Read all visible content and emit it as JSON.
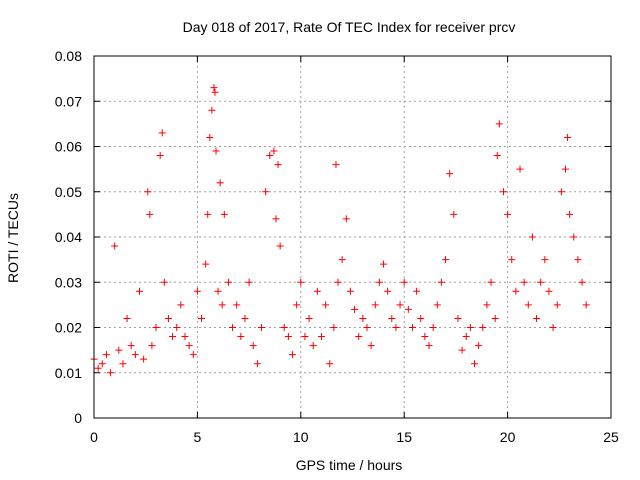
{
  "chart_data": {
    "type": "scatter",
    "title": "Day 018 of 2017, Rate Of TEC Index for receiver prcv",
    "xlabel": "GPS time / hours",
    "ylabel": "ROTI / TECUs",
    "xlim": [
      0,
      25
    ],
    "ylim": [
      0,
      0.08
    ],
    "x_ticks": [
      "0",
      "5",
      "10",
      "15",
      "20",
      "25"
    ],
    "y_ticks": [
      "0",
      "0.01",
      "0.02",
      "0.03",
      "0.04",
      "0.05",
      "0.06",
      "0.07",
      "0.08"
    ],
    "grid": true,
    "marker": "plus",
    "color": "#ff0000",
    "series": [
      {
        "x": [
          0.0,
          0.2,
          0.4,
          0.6,
          0.8,
          1.0,
          1.2,
          1.4,
          1.6,
          1.8,
          2.0,
          2.2,
          2.4,
          2.6,
          2.7,
          2.8,
          3.0,
          3.2,
          3.3,
          3.4,
          3.6,
          3.8,
          4.0,
          4.2,
          4.4,
          4.6,
          4.8,
          5.0,
          5.2,
          5.4,
          5.5,
          5.6,
          5.7,
          5.8,
          5.85,
          5.9,
          6.0,
          6.1,
          6.2,
          6.3,
          6.5,
          6.7,
          6.9,
          7.1,
          7.3,
          7.5,
          7.7,
          7.9,
          8.1,
          8.3,
          8.5,
          8.7,
          8.8,
          8.9,
          9.0,
          9.2,
          9.4,
          9.6,
          9.8,
          10.0,
          10.2,
          10.4,
          10.6,
          10.8,
          11.0,
          11.2,
          11.4,
          11.6,
          11.7,
          11.8,
          12.0,
          12.2,
          12.4,
          12.6,
          12.8,
          13.0,
          13.2,
          13.4,
          13.6,
          13.8,
          14.0,
          14.2,
          14.4,
          14.6,
          14.8,
          15.0,
          15.2,
          15.4,
          15.6,
          15.8,
          16.0,
          16.2,
          16.4,
          16.6,
          16.8,
          17.0,
          17.2,
          17.4,
          17.6,
          17.8,
          18.0,
          18.2,
          18.4,
          18.6,
          18.8,
          19.0,
          19.2,
          19.4,
          19.5,
          19.6,
          19.8,
          20.0,
          20.2,
          20.4,
          20.6,
          20.8,
          21.0,
          21.2,
          21.4,
          21.6,
          21.8,
          22.0,
          22.2,
          22.4,
          22.6,
          22.8,
          22.9,
          23.0,
          23.2,
          23.4,
          23.6,
          23.8
        ],
        "y": [
          0.013,
          0.011,
          0.012,
          0.014,
          0.01,
          0.038,
          0.015,
          0.012,
          0.022,
          0.016,
          0.014,
          0.028,
          0.013,
          0.05,
          0.045,
          0.016,
          0.02,
          0.058,
          0.063,
          0.03,
          0.022,
          0.018,
          0.02,
          0.025,
          0.018,
          0.016,
          0.014,
          0.028,
          0.022,
          0.034,
          0.045,
          0.062,
          0.068,
          0.073,
          0.072,
          0.059,
          0.028,
          0.052,
          0.025,
          0.045,
          0.03,
          0.02,
          0.025,
          0.018,
          0.022,
          0.03,
          0.016,
          0.012,
          0.02,
          0.05,
          0.058,
          0.059,
          0.044,
          0.056,
          0.038,
          0.02,
          0.018,
          0.014,
          0.025,
          0.03,
          0.018,
          0.022,
          0.016,
          0.028,
          0.018,
          0.025,
          0.012,
          0.02,
          0.056,
          0.03,
          0.035,
          0.044,
          0.028,
          0.024,
          0.018,
          0.022,
          0.02,
          0.016,
          0.025,
          0.03,
          0.034,
          0.028,
          0.022,
          0.02,
          0.025,
          0.03,
          0.024,
          0.02,
          0.028,
          0.022,
          0.018,
          0.016,
          0.02,
          0.025,
          0.03,
          0.035,
          0.054,
          0.045,
          0.022,
          0.015,
          0.018,
          0.02,
          0.012,
          0.016,
          0.02,
          0.025,
          0.03,
          0.022,
          0.058,
          0.065,
          0.05,
          0.045,
          0.035,
          0.028,
          0.055,
          0.03,
          0.025,
          0.04,
          0.022,
          0.03,
          0.035,
          0.028,
          0.02,
          0.025,
          0.05,
          0.055,
          0.062,
          0.045,
          0.04,
          0.035,
          0.03,
          0.025
        ]
      }
    ]
  }
}
